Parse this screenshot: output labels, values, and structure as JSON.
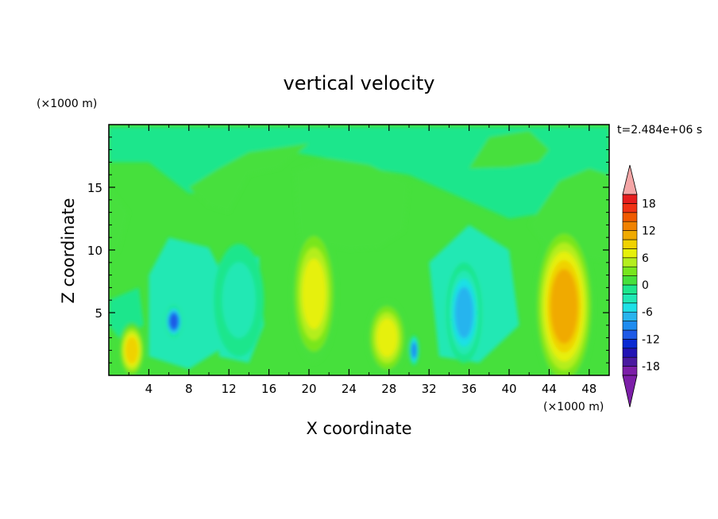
{
  "chart_data": {
    "type": "heatmap",
    "title": "vertical velocity",
    "xlabel": "X coordinate",
    "ylabel": "Z coordinate",
    "x_unit": "(×1000 m)",
    "y_unit": "(×1000 m)",
    "time_label": "t=2.484e+06 s",
    "xlim": [
      0,
      50
    ],
    "ylim": [
      0,
      20
    ],
    "xticks": [
      4,
      8,
      12,
      16,
      20,
      24,
      28,
      32,
      36,
      40,
      44,
      48
    ],
    "yticks": [
      5,
      10,
      15
    ],
    "colorbar": {
      "levels": [
        -20,
        -18,
        -16,
        -14,
        -12,
        -10,
        -8,
        -6,
        -4,
        -2,
        0,
        2,
        4,
        6,
        8,
        10,
        12,
        14,
        16,
        18,
        20
      ],
      "labels": [
        18,
        12,
        6,
        0,
        -6,
        -12,
        -18
      ],
      "colors": [
        "#7c1fa8",
        "#4a1aa0",
        "#2314b4",
        "#0a2ad2",
        "#1e5ae6",
        "#1e8cf0",
        "#28b4ee",
        "#1ee0e6",
        "#20e8b4",
        "#1ee68c",
        "#46e03c",
        "#78e61e",
        "#b4ee1e",
        "#e6f00a",
        "#f0d200",
        "#f0aa00",
        "#f08200",
        "#f05a00",
        "#f03214",
        "#e61e1e"
      ],
      "overflow_high_color": "#f4a6a6",
      "overflow_low_color": "#7c1fa8"
    },
    "features": [
      {
        "x": 2.3,
        "z": 2.0,
        "value": 9,
        "rx": 1.3,
        "rz": 2.2
      },
      {
        "x": 6.5,
        "z": 4.3,
        "value": -12,
        "rx": 0.9,
        "rz": 1.3
      },
      {
        "x": 20.5,
        "z": 6.5,
        "value": 7,
        "rx": 2.3,
        "rz": 5.5
      },
      {
        "x": 27.8,
        "z": 3.0,
        "value": 7,
        "rx": 2.0,
        "rz": 3.0
      },
      {
        "x": 35.5,
        "z": 5.0,
        "value": -8,
        "rx": 1.8,
        "rz": 4.0
      },
      {
        "x": 45.5,
        "z": 5.5,
        "value": 12,
        "rx": 3.0,
        "rz": 6.5
      },
      {
        "x": 13.0,
        "z": 6.0,
        "value": -4,
        "rx": 2.5,
        "rz": 4.5
      },
      {
        "x": 30.5,
        "z": 2.0,
        "value": -10,
        "rx": 0.5,
        "rz": 1.2
      }
    ]
  }
}
